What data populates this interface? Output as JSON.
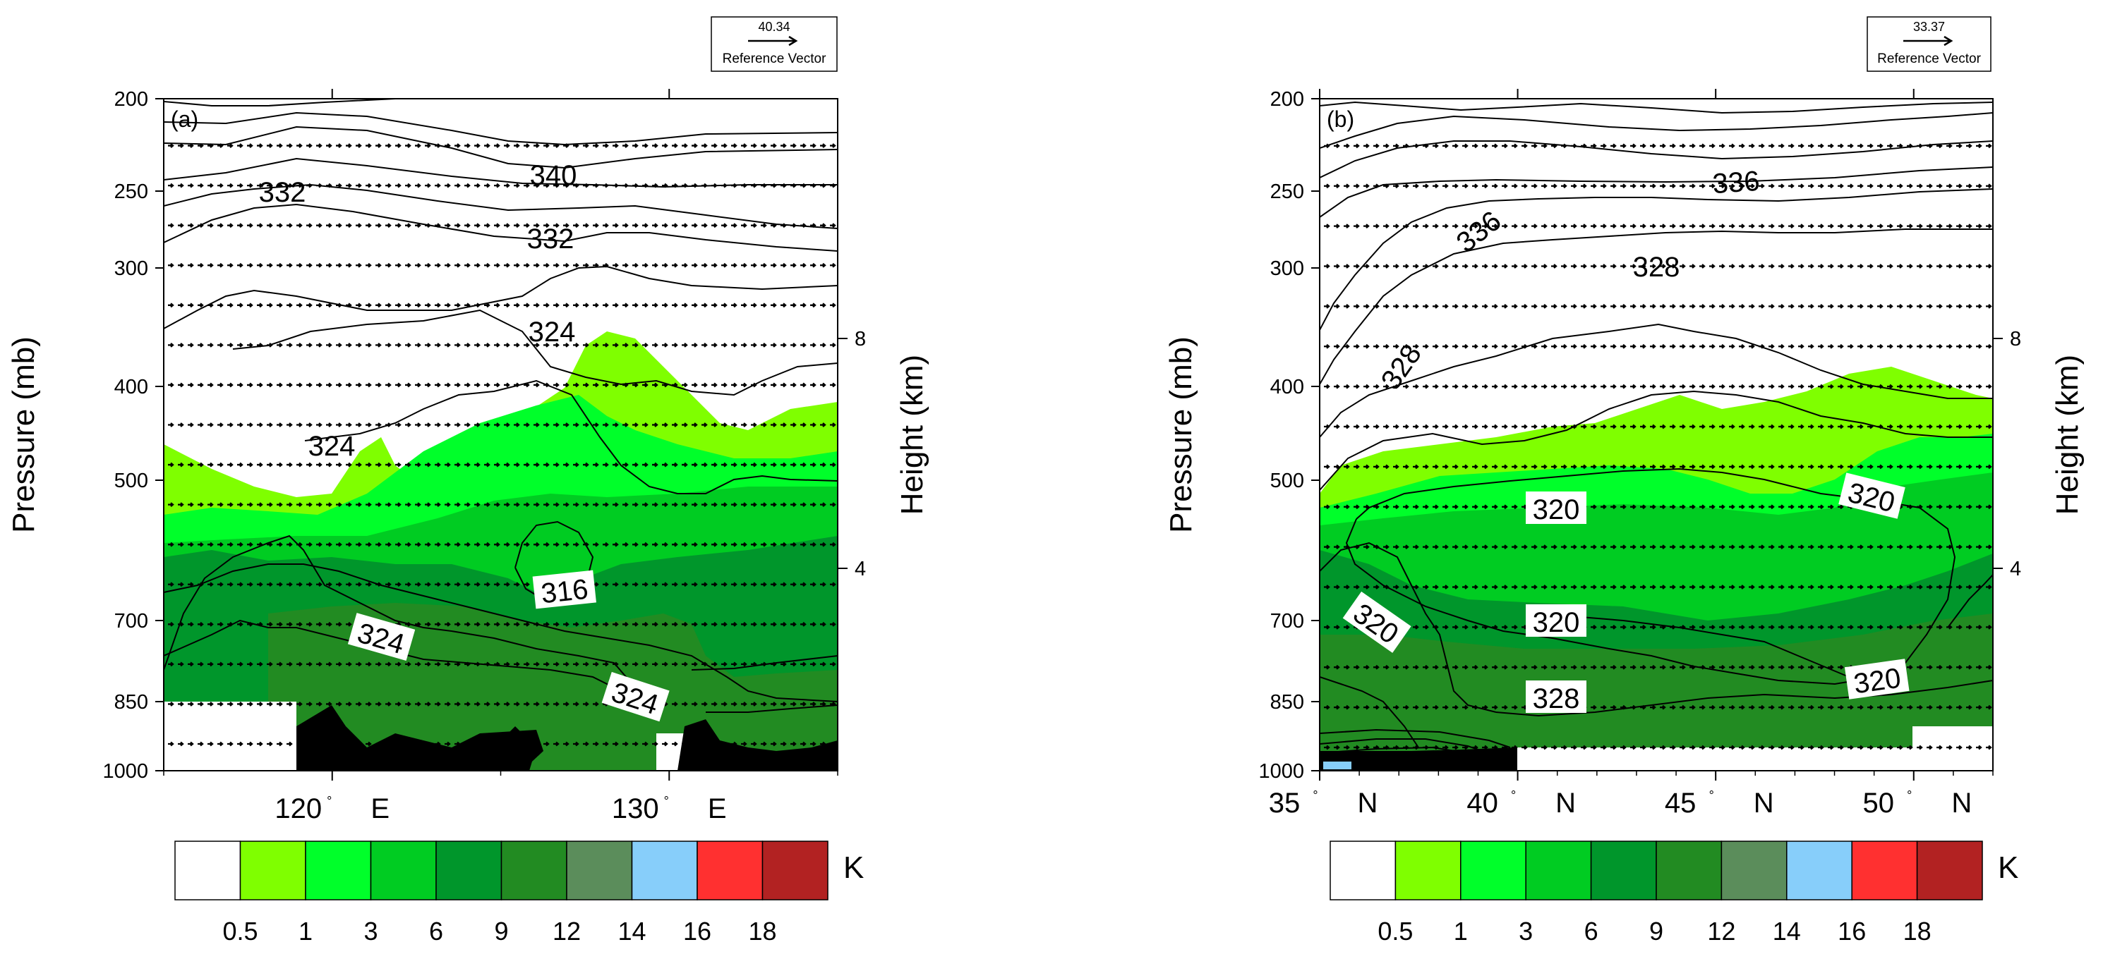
{
  "colors": {
    "fill_levels": [
      "#ffffff",
      "#7fff00",
      "#00ff2a",
      "#00cc22",
      "#00962b",
      "#228b22",
      "#5b8d5b",
      "#87cefa",
      "#ff3030",
      "#b22222"
    ],
    "terrain": "#000000",
    "contour": "#000000"
  },
  "chart_data": [
    {
      "type": "contour",
      "panel_label": "(a)",
      "ylabel": "Pressure (mb)",
      "ylabel_right": "Height (km)",
      "y_ticks": [
        "200",
        "250",
        "300",
        "400",
        "500",
        "700",
        "850",
        "1000"
      ],
      "y_right_ticks": [
        "8",
        "4"
      ],
      "x_ticks": [
        {
          "value": 120,
          "deg": "120",
          "hemi": "E"
        },
        {
          "value": 130,
          "deg": "130",
          "hemi": "E"
        }
      ],
      "xlim": [
        115,
        135
      ],
      "reference_vector": {
        "magnitude": "40.34",
        "label": "Reference Vector"
      },
      "contour_labels": [
        "340",
        "332",
        "332",
        "324",
        "324",
        "316",
        "324",
        "324"
      ],
      "colorbar": {
        "ticks": [
          "0.5",
          "1",
          "3",
          "6",
          "9",
          "12",
          "14",
          "16",
          "18"
        ],
        "unit": "K"
      }
    },
    {
      "type": "contour",
      "panel_label": "(b)",
      "ylabel": "Pressure (mb)",
      "ylabel_right": "Height (km)",
      "y_ticks": [
        "200",
        "250",
        "300",
        "400",
        "500",
        "700",
        "850",
        "1000"
      ],
      "y_right_ticks": [
        "8",
        "4"
      ],
      "x_ticks": [
        {
          "value": 35,
          "deg": "35",
          "hemi": "N"
        },
        {
          "value": 40,
          "deg": "40",
          "hemi": "N"
        },
        {
          "value": 45,
          "deg": "45",
          "hemi": "N"
        },
        {
          "value": 50,
          "deg": "50",
          "hemi": "N"
        }
      ],
      "xlim": [
        35,
        52
      ],
      "reference_vector": {
        "magnitude": "33.37",
        "label": "Reference Vector"
      },
      "contour_labels": [
        "336",
        "336",
        "328",
        "328",
        "320",
        "320",
        "320",
        "320",
        "328",
        "320"
      ],
      "colorbar": {
        "ticks": [
          "0.5",
          "1",
          "3",
          "6",
          "9",
          "12",
          "14",
          "16",
          "18"
        ],
        "unit": "K"
      }
    }
  ]
}
